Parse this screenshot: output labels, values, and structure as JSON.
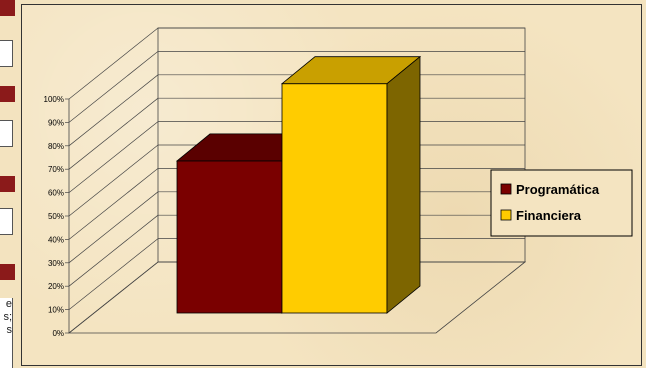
{
  "left_strip": {
    "text_lines": [
      "e",
      "s;",
      "s"
    ]
  },
  "chart_data": {
    "type": "bar",
    "three_d": true,
    "categories": [
      ""
    ],
    "series": [
      {
        "name": "Programática",
        "values": [
          0.65
        ],
        "color": "#7a0000",
        "top_color": "#5a0000",
        "side_color": "#4a0000"
      },
      {
        "name": "Financiera",
        "values": [
          0.98
        ],
        "color": "#ffcc00",
        "top_color": "#c9a000",
        "side_color": "#7d6500"
      }
    ],
    "y_ticks": [
      "0%",
      "10%",
      "20%",
      "30%",
      "40%",
      "50%",
      "60%",
      "70%",
      "80%",
      "90%",
      "100%"
    ],
    "ylim": [
      0,
      1
    ],
    "grid": true,
    "legend_position": "right"
  }
}
